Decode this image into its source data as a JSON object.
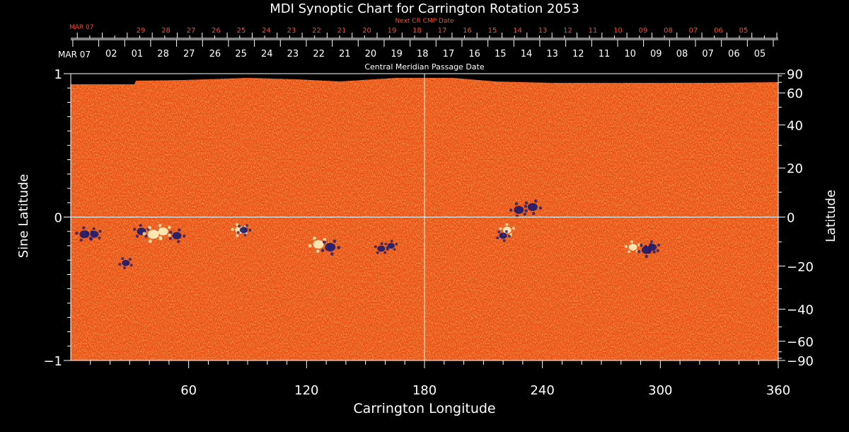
{
  "chart_data": {
    "type": "heatmap",
    "title": "MDI Synoptic Chart for Carrington Rotation 2053",
    "xlabel": "Carrington Longitude",
    "ylabel_left": "Sine Latitude",
    "ylabel_right": "Latitude",
    "xlim": [
      0,
      360
    ],
    "ylim": [
      -1,
      1
    ],
    "x_ticks": [
      60,
      120,
      180,
      240,
      300,
      360
    ],
    "y_ticks_left": [
      {
        "v": 1,
        "label": "1"
      },
      {
        "v": 0,
        "label": "0"
      },
      {
        "v": -1,
        "label": "−1"
      }
    ],
    "latitude_ticks": [
      90,
      60,
      40,
      20,
      0,
      -20,
      -40,
      -60,
      -90
    ],
    "latitude_tick_labels": [
      "90",
      "60",
      "40",
      "20",
      "0",
      "−20",
      "−40",
      "−60",
      "−90"
    ],
    "grid_lines": {
      "longitude": 180,
      "sine_latitude": 0
    },
    "cmp_axis": {
      "label": "Central Meridian Passage Date",
      "start_label": "MAR 07",
      "dates": [
        "02",
        "01",
        "28",
        "27",
        "26",
        "25",
        "24",
        "23",
        "22",
        "21",
        "20",
        "19",
        "18",
        "17",
        "16",
        "15",
        "14",
        "13",
        "12",
        "11",
        "10",
        "09",
        "08",
        "07",
        "06",
        "05"
      ]
    },
    "next_cr_axis": {
      "label": "Next CR CMP Date",
      "start_label": "MAR 07",
      "dates": [
        "29",
        "28",
        "27",
        "26",
        "25",
        "24",
        "23",
        "22",
        "21",
        "20",
        "19",
        "18",
        "17",
        "16",
        "15",
        "14",
        "13",
        "12",
        "11",
        "10",
        "09",
        "08",
        "07",
        "06",
        "05"
      ]
    },
    "colors": {
      "background": "#000000",
      "field_base": "#ee5012",
      "positive_polarity": "#fff3c0",
      "negative_polarity": "#1a1a6e",
      "axes": "#ffffff",
      "next_cr_text": "#ff4a1a"
    },
    "active_regions": [
      {
        "lon": 7,
        "sinlat": -0.12,
        "polarity": "negative",
        "strength": 0.8
      },
      {
        "lon": 12,
        "sinlat": -0.12,
        "polarity": "negative",
        "strength": 0.6
      },
      {
        "lon": 36,
        "sinlat": -0.1,
        "polarity": "negative",
        "strength": 0.7
      },
      {
        "lon": 42,
        "sinlat": -0.12,
        "polarity": "positive",
        "strength": 1.0
      },
      {
        "lon": 47,
        "sinlat": -0.1,
        "polarity": "positive",
        "strength": 0.8
      },
      {
        "lon": 54,
        "sinlat": -0.13,
        "polarity": "negative",
        "strength": 0.7
      },
      {
        "lon": 28,
        "sinlat": -0.32,
        "polarity": "negative",
        "strength": 0.5
      },
      {
        "lon": 86,
        "sinlat": -0.09,
        "polarity": "positive",
        "strength": 0.7
      },
      {
        "lon": 88,
        "sinlat": -0.09,
        "polarity": "negative",
        "strength": 0.5
      },
      {
        "lon": 126,
        "sinlat": -0.19,
        "polarity": "positive",
        "strength": 0.9
      },
      {
        "lon": 132,
        "sinlat": -0.21,
        "polarity": "negative",
        "strength": 0.9
      },
      {
        "lon": 158,
        "sinlat": -0.22,
        "polarity": "negative",
        "strength": 0.5
      },
      {
        "lon": 163,
        "sinlat": -0.2,
        "polarity": "negative",
        "strength": 0.4
      },
      {
        "lon": 228,
        "sinlat": 0.05,
        "polarity": "negative",
        "strength": 0.8
      },
      {
        "lon": 235,
        "sinlat": 0.07,
        "polarity": "negative",
        "strength": 0.8
      },
      {
        "lon": 222,
        "sinlat": -0.09,
        "polarity": "positive",
        "strength": 0.6
      },
      {
        "lon": 220,
        "sinlat": -0.13,
        "polarity": "negative",
        "strength": 0.5
      },
      {
        "lon": 286,
        "sinlat": -0.21,
        "polarity": "positive",
        "strength": 0.6
      },
      {
        "lon": 293,
        "sinlat": -0.23,
        "polarity": "negative",
        "strength": 0.8
      },
      {
        "lon": 296,
        "sinlat": -0.21,
        "polarity": "negative",
        "strength": 0.6
      }
    ]
  }
}
